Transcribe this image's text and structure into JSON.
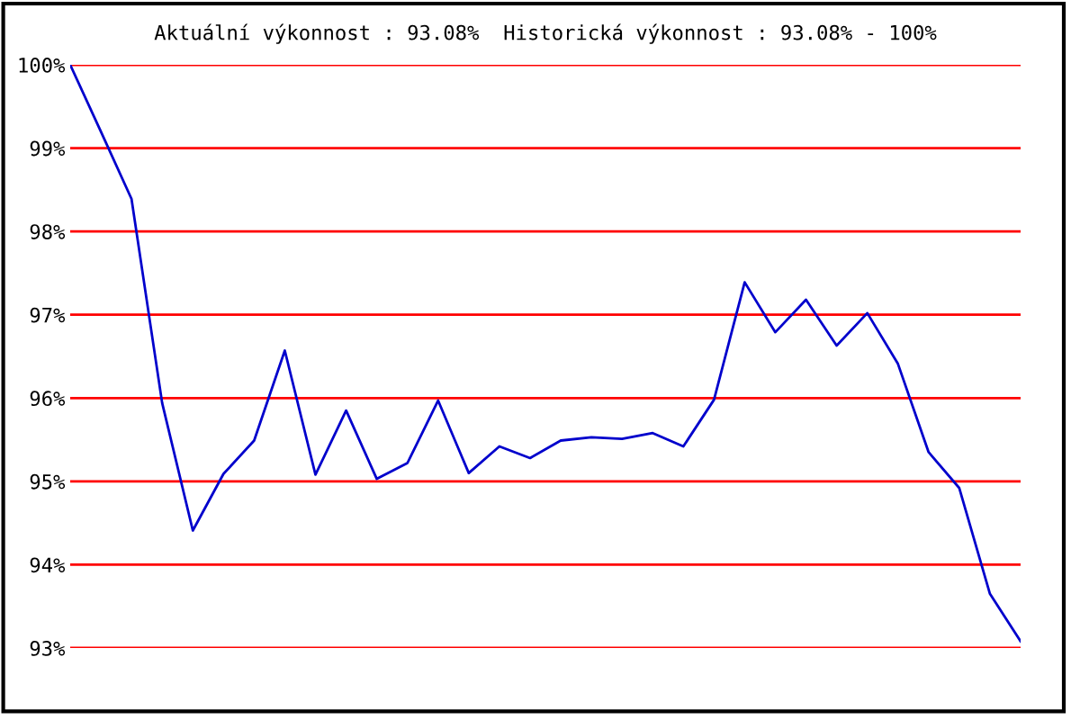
{
  "chart_data": {
    "type": "line",
    "title": "Aktuální výkonnost : 93.08%  Historická výkonnost : 93.08% - 100%",
    "categories": [
      null,
      null,
      null,
      null,
      null,
      null,
      null,
      null,
      null,
      null,
      null,
      null,
      null,
      null,
      null,
      null,
      null,
      null,
      null,
      null,
      null,
      null,
      null,
      null,
      null,
      null,
      null,
      null,
      null,
      null,
      null,
      null
    ],
    "series": [
      {
        "color": "#0000cc",
        "values": [
          100,
          99.2,
          98.39,
          95.94,
          94.41,
          95.09,
          95.49,
          96.57,
          95.08,
          95.85,
          95.03,
          95.22,
          95.97,
          95.1,
          95.42,
          95.28,
          95.49,
          95.53,
          95.51,
          95.58,
          95.42,
          95.98,
          97.39,
          96.79,
          97.18,
          96.63,
          97.02,
          96.41,
          95.35,
          94.92,
          93.65,
          93.08
        ]
      }
    ],
    "ylim": [
      93,
      100
    ],
    "yticks": [
      {
        "value": 93,
        "label": "93%"
      },
      {
        "value": 94,
        "label": "94%"
      },
      {
        "value": 95,
        "label": "95%"
      },
      {
        "value": 96,
        "label": "96%"
      },
      {
        "value": 97,
        "label": "97%"
      },
      {
        "value": 98,
        "label": "98%"
      },
      {
        "value": 99,
        "label": "99%"
      },
      {
        "value": 100,
        "label": "100%"
      }
    ],
    "grid": "y",
    "legend": false,
    "marker": "none",
    "line_style": "solid"
  }
}
